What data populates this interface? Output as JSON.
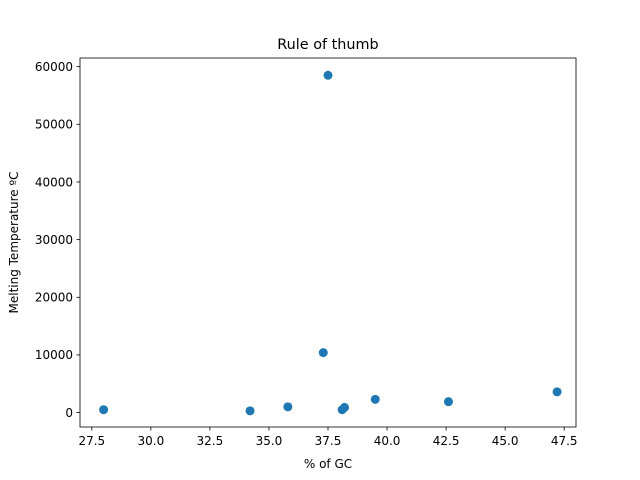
{
  "chart_data": {
    "type": "scatter",
    "title": "Rule of thumb",
    "xlabel": "% of GC",
    "ylabel": "Melting Temperature ºC",
    "xlim": [
      27.0,
      48.0
    ],
    "ylim": [
      -2500,
      61500
    ],
    "x_ticks": [
      27.5,
      30.0,
      32.5,
      35.0,
      37.5,
      40.0,
      42.5,
      45.0,
      47.5
    ],
    "x_tick_labels": [
      "27.5",
      "30.0",
      "32.5",
      "35.0",
      "37.5",
      "40.0",
      "42.5",
      "45.0",
      "47.5"
    ],
    "y_ticks": [
      0,
      10000,
      20000,
      30000,
      40000,
      50000,
      60000
    ],
    "y_tick_labels": [
      "0",
      "10000",
      "20000",
      "30000",
      "40000",
      "50000",
      "60000"
    ],
    "grid": false,
    "series": [
      {
        "color": "#1f77b4",
        "x": [
          28.0,
          34.2,
          35.8,
          37.3,
          37.5,
          38.1,
          38.2,
          39.5,
          42.6,
          47.2
        ],
        "y": [
          500,
          300,
          1000,
          10400,
          58500,
          500,
          900,
          2300,
          1900,
          3600
        ]
      }
    ]
  }
}
